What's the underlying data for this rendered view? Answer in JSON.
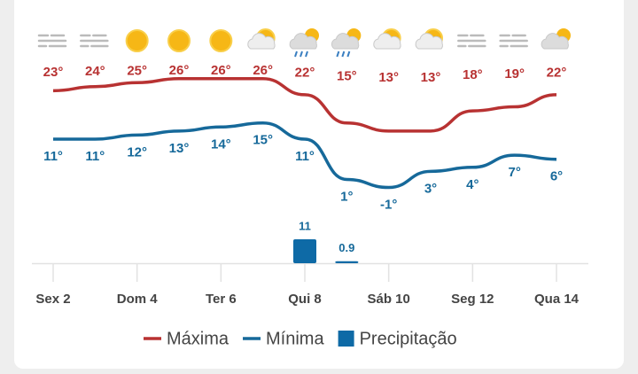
{
  "chart_data": {
    "type": "line",
    "categories": [
      "Sex 2",
      null,
      "Dom 4",
      null,
      "Ter 6",
      null,
      "Qui 8",
      null,
      "Sáb 10",
      null,
      "Seg 12",
      null,
      "Qua 14"
    ],
    "series": [
      {
        "name": "Máxima",
        "color": "#b83232",
        "values": [
          23,
          24,
          25,
          26,
          26,
          26,
          22,
          15,
          13,
          13,
          18,
          19,
          22
        ],
        "value_labels": [
          "23°",
          "24°",
          "25°",
          "26°",
          "26°",
          "26°",
          "22°",
          "15°",
          "13°",
          "13°",
          "18°",
          "19°",
          "22°"
        ]
      },
      {
        "name": "Mínima",
        "color": "#16699a",
        "values": [
          11,
          11,
          12,
          13,
          14,
          15,
          11,
          1,
          -1,
          3,
          4,
          7,
          6
        ],
        "value_labels": [
          "11°",
          "11°",
          "12°",
          "13°",
          "14°",
          "15°",
          "11°",
          "1°",
          "-1°",
          "3°",
          "4°",
          "7°",
          "6°"
        ]
      },
      {
        "name": "Precipitação",
        "type": "bar",
        "color": "#0e6aa6",
        "values": [
          null,
          null,
          null,
          null,
          null,
          null,
          11,
          0.9,
          null,
          null,
          null,
          null,
          null
        ]
      }
    ]
  }
}
